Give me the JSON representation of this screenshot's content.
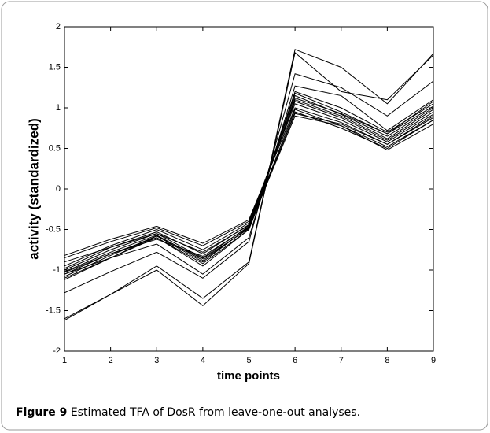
{
  "chart_data": {
    "type": "line",
    "xlabel": "time points",
    "ylabel": "activity (standardized)",
    "x": [
      1,
      2,
      3,
      4,
      5,
      6,
      7,
      8,
      9
    ],
    "xlim": [
      1,
      9
    ],
    "xticks": [
      1,
      2,
      3,
      4,
      5,
      6,
      7,
      8,
      9
    ],
    "ylim": [
      -2,
      2
    ],
    "yticks": [
      -2,
      -1.5,
      -1,
      -0.5,
      0,
      0.5,
      1,
      1.5,
      2
    ],
    "color": "#000000",
    "series": [
      {
        "values": [
          -1.62,
          -1.3,
          -0.95,
          -1.35,
          -0.9,
          1.72,
          1.5,
          1.05,
          1.67
        ]
      },
      {
        "values": [
          -1.6,
          -1.3,
          -1.0,
          -1.44,
          -0.92,
          1.68,
          1.2,
          1.1,
          1.65
        ]
      },
      {
        "values": [
          -1.28,
          -1.02,
          -0.78,
          -1.1,
          -0.65,
          1.42,
          1.25,
          0.9,
          1.33
        ]
      },
      {
        "values": [
          -1.12,
          -0.85,
          -0.68,
          -1.05,
          -0.6,
          1.27,
          1.15,
          0.72,
          1.1
        ]
      },
      {
        "values": [
          -1.05,
          -0.8,
          -0.6,
          -0.95,
          -0.5,
          1.2,
          1.0,
          0.7,
          1.05
        ]
      },
      {
        "values": [
          -1.02,
          -0.78,
          -0.57,
          -0.88,
          -0.48,
          1.18,
          0.95,
          0.68,
          1.02
        ]
      },
      {
        "values": [
          -1.0,
          -0.75,
          -0.55,
          -0.85,
          -0.46,
          1.15,
          0.92,
          0.65,
          1.0
        ]
      },
      {
        "values": [
          -0.98,
          -0.72,
          -0.53,
          -0.8,
          -0.44,
          1.1,
          0.9,
          0.62,
          0.98
        ]
      },
      {
        "values": [
          -0.95,
          -0.7,
          -0.5,
          -0.75,
          -0.42,
          1.08,
          0.88,
          0.6,
          0.95
        ]
      },
      {
        "values": [
          -0.85,
          -0.65,
          -0.48,
          -0.7,
          -0.4,
          1.05,
          0.85,
          0.58,
          0.92
        ]
      },
      {
        "values": [
          -0.82,
          -0.62,
          -0.46,
          -0.67,
          -0.38,
          1.0,
          0.82,
          0.55,
          0.9
        ]
      },
      {
        "values": [
          -1.08,
          -0.82,
          -0.58,
          -0.9,
          -0.47,
          0.98,
          0.78,
          0.52,
          0.85
        ]
      },
      {
        "values": [
          -1.1,
          -0.85,
          -0.6,
          -0.92,
          -0.5,
          0.95,
          0.75,
          0.5,
          0.85
        ]
      },
      {
        "values": [
          -0.9,
          -0.72,
          -0.55,
          -0.78,
          -0.45,
          0.93,
          0.8,
          0.55,
          0.88
        ]
      },
      {
        "values": [
          -1.03,
          -0.8,
          -0.62,
          -0.83,
          -0.47,
          0.9,
          0.78,
          0.48,
          0.8
        ]
      },
      {
        "values": [
          -1.05,
          -0.85,
          -0.58,
          -0.86,
          -0.49,
          1.12,
          0.93,
          0.68,
          1.08
        ]
      }
    ]
  },
  "caption": {
    "label": "Figure 9",
    "text": "Estimated TFA of DosR from leave-one-out analyses."
  }
}
